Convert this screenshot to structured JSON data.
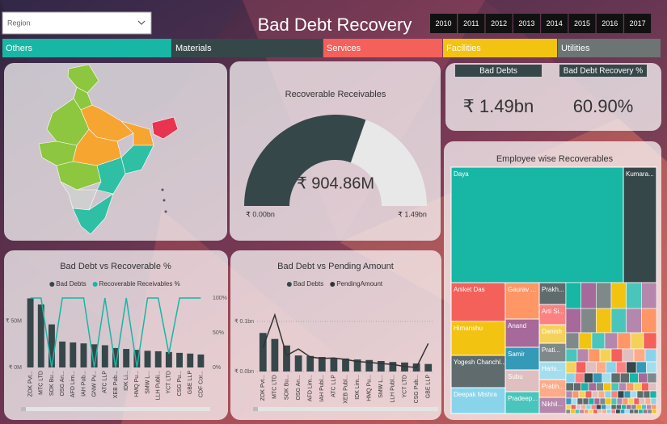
{
  "header": {
    "region_filter": "Region",
    "title": "Bad Debt Recovery",
    "years": [
      "2010",
      "2011",
      "2012",
      "2013",
      "2014",
      "2015",
      "2016",
      "2017"
    ]
  },
  "tabs": [
    {
      "label": "Others",
      "color": "#17b6a5"
    },
    {
      "label": "Materials",
      "color": "#36474a"
    },
    {
      "label": "Services",
      "color": "#f4605a"
    },
    {
      "label": "Facilities",
      "color": "#f2c311"
    },
    {
      "label": "Utilities",
      "color": "#6c7474"
    }
  ],
  "kpis": [
    {
      "label": "Bad Debts",
      "value": "₹ 1.49bn"
    },
    {
      "label": "Bad Debt Recovery %",
      "value": "60.90%"
    }
  ],
  "chart_data": [
    {
      "type": "combo",
      "title": "Bad Debt vs Recoverable %",
      "categories": [
        "ZOK Pvt...",
        "MTC LTD",
        "SOK Bu...",
        "OSG An...",
        "AFD Lim...",
        "IAH Pub...",
        "GNW Pv...",
        "ATC LLP",
        "XEB Pub...",
        "IDK Li...",
        "HMQ Pu...",
        "SMW L...",
        "LLH Publi...",
        "YCT LTD",
        "CSG Pu...",
        "GBE LLP",
        "CDF Cor..."
      ],
      "series": [
        {
          "name": "Bad Debts",
          "type": "bar",
          "color": "#36474a",
          "values": [
            74.6,
            68,
            46.5,
            28,
            27,
            26,
            25,
            24,
            21,
            20,
            19,
            18,
            17.5,
            16.7,
            15.8,
            15,
            14
          ]
        },
        {
          "name": "Recoverable Receivables %",
          "type": "line",
          "axis": "y2",
          "color": "#17b6a5",
          "values": [
            100,
            100,
            0,
            100,
            100,
            100,
            0,
            100,
            0,
            100,
            0,
            100,
            100,
            20,
            100,
            100,
            100
          ]
        }
      ],
      "ylim": [
        0,
        75
      ],
      "yticks": [
        {
          "value": 0,
          "label": "₹ 0M"
        },
        {
          "value": 50,
          "label": "₹ 50M"
        }
      ],
      "y2lim": [
        0,
        100
      ],
      "y2ticks": [
        {
          "value": 0,
          "label": "0%"
        },
        {
          "value": 50,
          "label": "50%"
        },
        {
          "value": 100,
          "label": "100%"
        }
      ],
      "grid": false
    },
    {
      "type": "combo",
      "title": "Bad Debt vs Pending Amount",
      "categories": [
        "ZOK Pvt...",
        "MTC LTD",
        "SOK Bu...",
        "OSG An...",
        "AFD Lim...",
        "IAH Publ...",
        "ATC LLP",
        "XEB Publ...",
        "IDK Lim...",
        "HMQ Pu...",
        "SMW L...",
        "LLH Publ...",
        "YCT LTD",
        "CSG Pub...",
        "GBE LLP"
      ],
      "series": [
        {
          "name": "Bad Debts",
          "type": "bar",
          "color": "#36474a",
          "values": [
            0.077,
            0.065,
            0.052,
            0.032,
            0.031,
            0.029,
            0.027,
            0.026,
            0.024,
            0.023,
            0.021,
            0.019,
            0.018,
            0.016,
            0.015
          ]
        },
        {
          "name": "PendingAmount",
          "type": "line",
          "color": "#333333",
          "values": [
            0.048,
            0.113,
            0.032,
            0.045,
            0.029,
            0.026,
            0.027,
            0.024,
            0.02,
            0.018,
            0.016,
            0.014,
            0.01,
            0.008,
            0.056
          ]
        }
      ],
      "ylim": [
        0,
        0.12
      ],
      "yticks": [
        {
          "value": 0,
          "label": "₹ 0.0bn"
        },
        {
          "value": 0.1,
          "label": "₹ 0.1bn"
        }
      ],
      "grid": true
    },
    {
      "type": "gauge",
      "title": "Recoverable Receivables",
      "value": 0.90486,
      "value_label": "₹ 904.86M",
      "min": 0,
      "min_label": "₹ 0.00bn",
      "max": 1.49,
      "max_label": "₹ 1.49bn",
      "color": "#36474a",
      "track_color": "#e8e8e8"
    },
    {
      "type": "treemap",
      "title": "Employee wise Recoverables",
      "categories": [
        "Daya",
        "Kumara...",
        "Aniket Das",
        "Himanshu",
        "Yogesh Chanchl...",
        "Deepak Mishra",
        "Gaurav ...",
        "Anand",
        "Samir",
        "Subu",
        "Pradeep...",
        "Prakh...",
        "Arti Si...",
        "Danish",
        "Prati...",
        "Haris...",
        "Prabh...",
        "Nikhil..."
      ],
      "values": [
        355.8,
        68.5,
        37.6,
        32.9,
        31.3,
        25,
        22.1,
        17.2,
        13.7,
        13.2,
        13.2,
        10.4,
        9.6,
        8.9,
        8.9,
        8.5,
        8.5,
        7.7
      ],
      "colors": [
        "#17b6a5",
        "#36474a",
        "#f4605a",
        "#f2c311",
        "#5f6b6d",
        "#8ad4eb",
        "#fe9666",
        "#a66999",
        "#3599b8",
        "#dfbfbf",
        "#4ac5bb",
        "#5f6b6d",
        "#fb8281",
        "#f4d25a",
        "#7f898a",
        "#a4ddee",
        "#fdab89",
        "#b687ac"
      ]
    }
  ]
}
